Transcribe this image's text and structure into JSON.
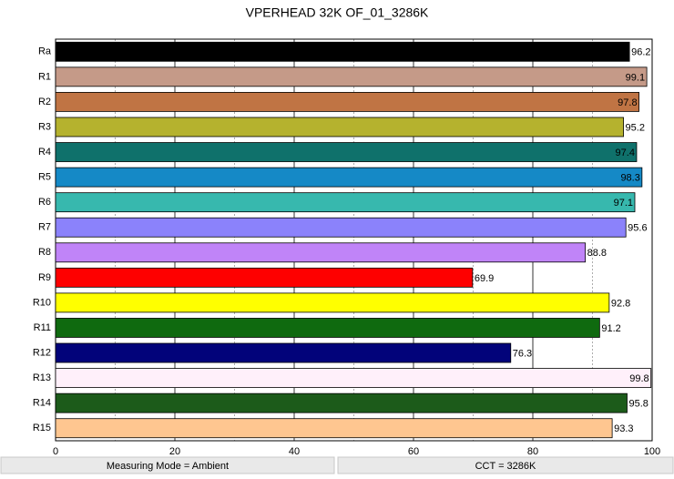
{
  "chart_data": {
    "type": "bar",
    "orientation": "horizontal",
    "title": "VPERHEAD 32K OF_01_3286K",
    "categories": [
      "Ra",
      "R1",
      "R2",
      "R3",
      "R4",
      "R5",
      "R6",
      "R7",
      "R8",
      "R9",
      "R10",
      "R11",
      "R12",
      "R13",
      "R14",
      "R15"
    ],
    "values": [
      96.2,
      99.1,
      97.8,
      95.2,
      97.4,
      98.3,
      97.1,
      95.6,
      88.8,
      69.9,
      92.8,
      91.2,
      76.3,
      99.8,
      95.8,
      93.3
    ],
    "colors": [
      "#000000",
      "#c59a88",
      "#c07444",
      "#b5b22e",
      "#0f716b",
      "#1589c6",
      "#37b8ae",
      "#8b82fb",
      "#c084f8",
      "#fe0000",
      "#ffff00",
      "#0f6a0f",
      "#02037a",
      "#fff0fa",
      "#1c5b1a",
      "#fec690"
    ],
    "xlim": [
      0,
      100
    ],
    "xticks": [
      0,
      20,
      40,
      60,
      80,
      100
    ],
    "minor_grid": [
      10,
      30,
      50,
      70,
      90
    ],
    "grid": true
  },
  "footer": [
    "Measuring Mode = Ambient",
    "CCT = 3286K"
  ]
}
